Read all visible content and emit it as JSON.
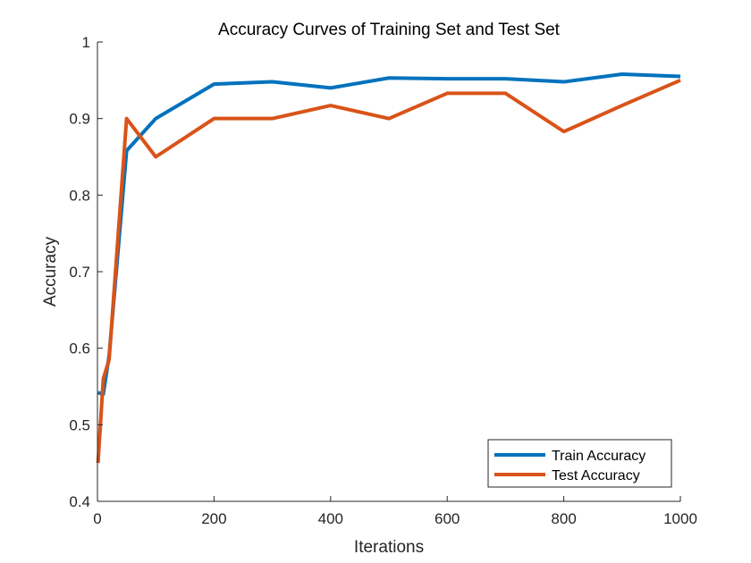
{
  "chart_data": {
    "type": "line",
    "title": "Accuracy Curves of Training Set and Test Set",
    "xlabel": "Iterations",
    "ylabel": "Accuracy",
    "xlim": [
      0,
      1000
    ],
    "ylim": [
      0.4,
      1
    ],
    "xticks": [
      0,
      200,
      400,
      600,
      800,
      1000
    ],
    "xtick_labels": [
      "0",
      "200",
      "400",
      "600",
      "800",
      "1000"
    ],
    "yticks": [
      0.4,
      0.5,
      0.6,
      0.7,
      0.8,
      0.9,
      1
    ],
    "ytick_labels": [
      "0.4",
      "0.5",
      "0.6",
      "0.7",
      "0.8",
      "0.9",
      "1"
    ],
    "grid": false,
    "legend_position": "bottom-right",
    "series": [
      {
        "name": "Train Accuracy",
        "color": "#0072BD",
        "x": [
          1,
          10,
          20,
          50,
          100,
          200,
          300,
          400,
          500,
          600,
          700,
          800,
          900,
          1000
        ],
        "y": [
          0.542,
          0.54,
          0.59,
          0.858,
          0.9,
          0.945,
          0.948,
          0.94,
          0.953,
          0.952,
          0.952,
          0.948,
          0.958,
          0.955
        ]
      },
      {
        "name": "Test Accuracy",
        "color": "#D95319",
        "x": [
          1,
          10,
          20,
          50,
          100,
          200,
          300,
          400,
          500,
          600,
          700,
          800,
          900,
          1000
        ],
        "y": [
          0.45,
          0.56,
          0.585,
          0.9,
          0.85,
          0.9,
          0.9,
          0.917,
          0.9,
          0.933,
          0.933,
          0.883,
          0.917,
          0.95
        ]
      }
    ]
  }
}
